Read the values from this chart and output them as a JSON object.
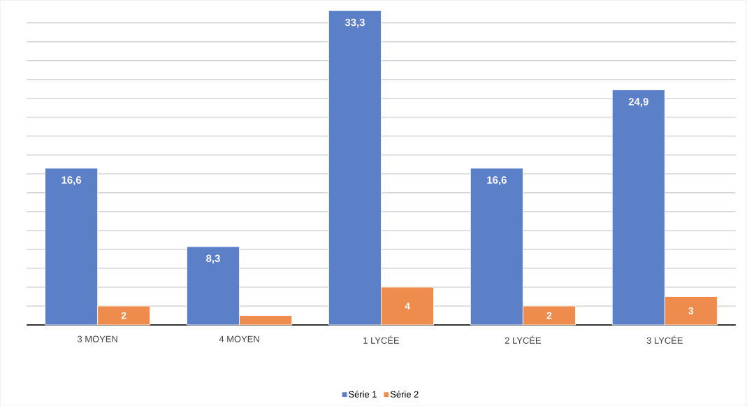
{
  "chart_data": {
    "type": "bar",
    "categories": [
      "3 MOYEN",
      "4 MOYEN",
      "1 LYCÉE",
      "2 LYCÉE",
      "3 LYCÉE"
    ],
    "series": [
      {
        "name": "Série 1",
        "color": "#5b80c8",
        "values": [
          16.6,
          8.3,
          33.3,
          16.6,
          24.9
        ],
        "value_labels": [
          "16,6",
          "8,3",
          "33,3",
          "16,6",
          "24,9"
        ]
      },
      {
        "name": "Série 2",
        "color": "#ed8c4c",
        "values": [
          2,
          1,
          4,
          2,
          3
        ],
        "value_labels": [
          "2",
          null,
          "4",
          "2",
          "3"
        ]
      }
    ],
    "tick_labels": "x",
    "grid": "y",
    "legend": "bottom"
  }
}
